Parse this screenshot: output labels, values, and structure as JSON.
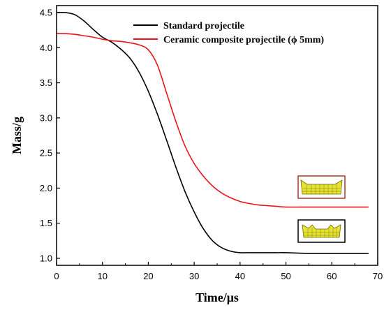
{
  "chart_data": {
    "type": "line",
    "title": "",
    "xlabel": "Time/μs",
    "ylabel": "Mass/g",
    "xlim": [
      0,
      70
    ],
    "ylim": [
      0.9,
      4.6
    ],
    "x_ticks": [
      0,
      10,
      20,
      30,
      40,
      50,
      60,
      70
    ],
    "y_ticks": [
      1.0,
      1.5,
      2.0,
      2.5,
      3.0,
      3.5,
      4.0,
      4.5
    ],
    "grid": false,
    "legend_position": "top-right",
    "series": [
      {
        "name": "Standard projectile",
        "color": "#000000",
        "x": [
          0,
          2,
          4,
          6,
          8,
          10,
          12,
          14,
          16,
          18,
          20,
          22,
          24,
          26,
          28,
          30,
          32,
          34,
          36,
          38,
          40,
          42,
          44,
          46,
          48,
          50,
          55,
          60,
          65,
          68
        ],
        "y": [
          4.5,
          4.5,
          4.47,
          4.38,
          4.26,
          4.15,
          4.08,
          3.98,
          3.85,
          3.65,
          3.38,
          3.05,
          2.68,
          2.3,
          1.95,
          1.66,
          1.42,
          1.25,
          1.15,
          1.1,
          1.08,
          1.08,
          1.08,
          1.08,
          1.08,
          1.08,
          1.07,
          1.07,
          1.07,
          1.07
        ]
      },
      {
        "name": "Ceramic composite projectile (ϕ 5mm)",
        "color": "#e8151c",
        "x": [
          0,
          2,
          4,
          6,
          8,
          10,
          12,
          14,
          16,
          18,
          20,
          22,
          24,
          26,
          28,
          30,
          32,
          34,
          36,
          38,
          40,
          42,
          44,
          46,
          48,
          50,
          55,
          60,
          65,
          68
        ],
        "y": [
          4.2,
          4.2,
          4.19,
          4.17,
          4.15,
          4.12,
          4.1,
          4.09,
          4.07,
          4.04,
          3.97,
          3.75,
          3.35,
          2.95,
          2.6,
          2.35,
          2.17,
          2.03,
          1.93,
          1.86,
          1.81,
          1.78,
          1.76,
          1.75,
          1.74,
          1.73,
          1.73,
          1.73,
          1.73,
          1.73
        ]
      }
    ]
  },
  "colors": {
    "axis": "#000000",
    "mesh_fill": "#e6e230",
    "mesh_line": "#6d6a10",
    "inset_red_border": "#a33a2a",
    "inset_black_border": "#000000"
  }
}
